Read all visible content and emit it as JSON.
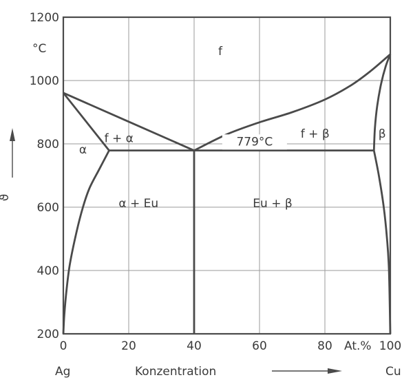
{
  "chart_data": {
    "type": "line",
    "title": "",
    "xlabel": "Konzentration",
    "x_unit": "At.%",
    "x_left_element": "Ag",
    "x_right_element": "Cu",
    "ylabel": "ϑ",
    "y_unit": "°C",
    "xlim": [
      0,
      100
    ],
    "ylim": [
      200,
      1200
    ],
    "grid": true,
    "x_ticks": [
      "0",
      "20",
      "40",
      "60",
      "80",
      "100"
    ],
    "y_ticks": [
      "200",
      "400",
      "600",
      "800",
      "1000",
      "1200"
    ],
    "line_color": "#4a4a4a",
    "series": [
      {
        "id": "liquidus-ag",
        "x": [
          0,
          40
        ],
        "y": [
          961,
          779
        ]
      },
      {
        "id": "solidus-ag",
        "x": [
          0,
          14
        ],
        "y": [
          961,
          779
        ]
      },
      {
        "id": "solvus-alpha",
        "x": [
          14,
          11,
          8,
          6,
          4,
          2,
          1,
          0.3,
          0
        ],
        "y": [
          779,
          720,
          660,
          600,
          520,
          420,
          340,
          260,
          200
        ]
      },
      {
        "id": "eutectic-line",
        "x": [
          14,
          95
        ],
        "y": [
          779,
          779
        ]
      },
      {
        "id": "eutectic-vertical",
        "x": [
          40,
          40
        ],
        "y": [
          779,
          200
        ]
      },
      {
        "id": "liquidus-cu",
        "x": [
          40,
          50,
          60,
          70,
          80,
          88,
          94,
          100
        ],
        "y": [
          779,
          830,
          868,
          900,
          940,
          985,
          1030,
          1083
        ]
      },
      {
        "id": "solidus-cu",
        "x": [
          95,
          95.3,
          96,
          97.2,
          98.6,
          100
        ],
        "y": [
          779,
          850,
          920,
          990,
          1045,
          1083
        ]
      },
      {
        "id": "solvus-beta",
        "x": [
          95,
          96.5,
          98,
          99,
          99.6,
          100
        ],
        "y": [
          779,
          700,
          600,
          500,
          400,
          200
        ]
      }
    ],
    "annotations": [
      {
        "text": "f",
        "x": 48,
        "y": 1080
      },
      {
        "text": "f + α",
        "x": 17,
        "y": 805
      },
      {
        "text": "α",
        "x": 6,
        "y": 770
      },
      {
        "text": "f + β",
        "x": 77,
        "y": 820
      },
      {
        "text": "β",
        "x": 97.5,
        "y": 820
      },
      {
        "text": "779°C",
        "x": 58.5,
        "y": 795
      },
      {
        "text": "α + Eu",
        "x": 23,
        "y": 600
      },
      {
        "text": "Eu + β",
        "x": 64,
        "y": 600
      }
    ]
  }
}
